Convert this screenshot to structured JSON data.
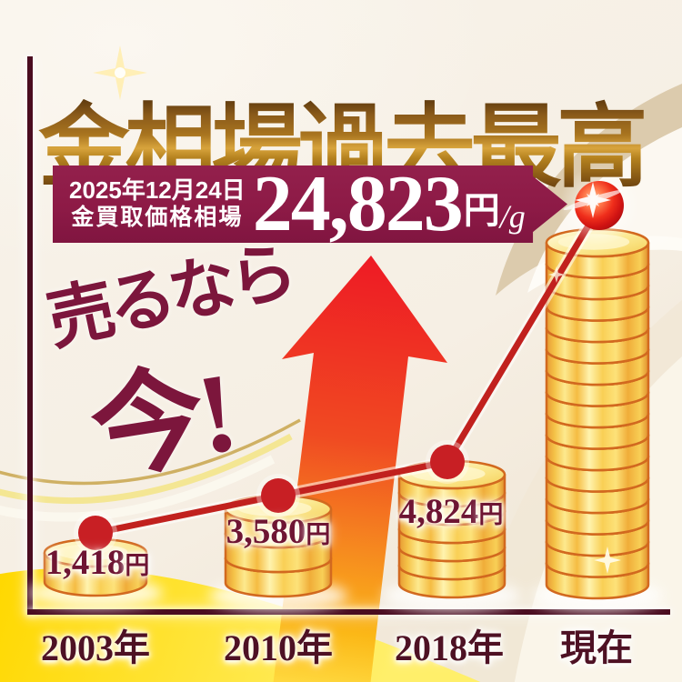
{
  "title": "金相場過去最高",
  "banner": {
    "date_line": "2025年12月24日",
    "label_line": "金買取価格相場",
    "price": "24,823",
    "unit_yen": "円",
    "unit_per_g": "/g"
  },
  "slogan": {
    "line1": "売るなら",
    "line2": "今!"
  },
  "chart_data": {
    "type": "line",
    "categories": [
      "2003年",
      "2010年",
      "2018年",
      "現在"
    ],
    "values": [
      1418,
      3580,
      4824,
      24823
    ],
    "value_labels": [
      "1,418",
      "3,580",
      "4,824"
    ],
    "value_unit": "円",
    "unit": "円/g",
    "coin_counts": [
      1,
      3,
      6,
      16
    ],
    "legend": "none",
    "grid": false,
    "xlabel": "",
    "ylabel": ""
  },
  "colors": {
    "background_cream": "#f6efe4",
    "banner_bg": "#8d1a46",
    "banner_text": "#ffffff",
    "title_gold_dark": "#5e3a0e",
    "title_gold_light": "#d8a43c",
    "slogan": "#7c163c",
    "axis": "#4a0c20",
    "trend_line": "#c1211e",
    "data_point": "#c81f24",
    "arrow_red": "#ee1b24",
    "arrow_yellow": "#ffd83e",
    "coin_gold": "#f5c348",
    "coin_outline": "#d2691f",
    "band_yellow": "#ffd800"
  },
  "icons": {
    "rising_arrow": "up-arrow",
    "gold_coin_stack": "coin-stack",
    "highlight_sphere": "red-sphere",
    "sparkle": "four-point-star"
  }
}
